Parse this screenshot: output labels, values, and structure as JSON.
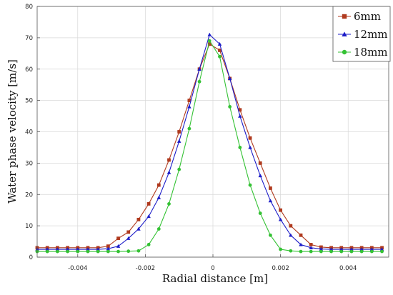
{
  "chart_data": {
    "type": "line",
    "xlabel": "Radial distance [m]",
    "ylabel": "Water phase velocity [m/s]",
    "xlim": [
      -0.0052,
      0.0052
    ],
    "ylim": [
      0,
      80
    ],
    "xticks": [
      -0.004,
      -0.002,
      0,
      0.002,
      0.004
    ],
    "xtick_labels": [
      "-0.004",
      "-0.002",
      "0",
      "0.002",
      "0.004"
    ],
    "yticks": [
      0,
      10,
      20,
      30,
      40,
      50,
      60,
      70,
      80
    ],
    "ytick_labels": [
      "0",
      "10",
      "20",
      "30",
      "40",
      "50",
      "60",
      "70",
      "80"
    ],
    "grid": true,
    "legend_position": "top-right",
    "x": [
      -0.0052,
      -0.0049,
      -0.0046,
      -0.0043,
      -0.004,
      -0.0037,
      -0.0034,
      -0.0031,
      -0.0028,
      -0.0025,
      -0.0022,
      -0.0019,
      -0.0016,
      -0.0013,
      -0.001,
      -0.0007,
      -0.0004,
      -0.0001,
      0.0002,
      0.0005,
      0.0008,
      0.0011,
      0.0014,
      0.0017,
      0.002,
      0.0023,
      0.0026,
      0.0029,
      0.0032,
      0.0035,
      0.0038,
      0.0041,
      0.0044,
      0.0047,
      0.005
    ],
    "series": [
      {
        "name": "6mm",
        "color": "#b03a1e",
        "marker": "square",
        "values": [
          3,
          3,
          3,
          3,
          3,
          3,
          3,
          3.5,
          6,
          8,
          12,
          17,
          23,
          31,
          40,
          50,
          60,
          68,
          66,
          57,
          47,
          38,
          30,
          22,
          15,
          10,
          7,
          4,
          3.2,
          3,
          3,
          3,
          3,
          3,
          3
        ]
      },
      {
        "name": "12mm",
        "color": "#1c1cc8",
        "marker": "triangle",
        "values": [
          2.5,
          2.5,
          2.5,
          2.5,
          2.5,
          2.5,
          2.5,
          2.7,
          3.5,
          6,
          9,
          13,
          19,
          27,
          37,
          48,
          60,
          71,
          68,
          57,
          45,
          35,
          26,
          18,
          12,
          7,
          4,
          3,
          2.6,
          2.5,
          2.5,
          2.5,
          2.5,
          2.5,
          2.5
        ]
      },
      {
        "name": "18mm",
        "color": "#34c234",
        "marker": "circle",
        "values": [
          1.8,
          1.8,
          1.8,
          1.8,
          1.8,
          1.8,
          1.8,
          1.8,
          1.8,
          1.9,
          2,
          4,
          9,
          17,
          28,
          41,
          56,
          69,
          64,
          48,
          35,
          23,
          14,
          7,
          2.5,
          2,
          1.8,
          1.8,
          1.8,
          1.8,
          1.8,
          1.8,
          1.8,
          1.8,
          1.8
        ]
      }
    ]
  }
}
